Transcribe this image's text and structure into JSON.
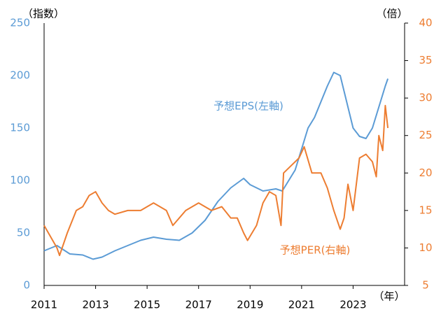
{
  "chart_data": {
    "type": "line",
    "left_unit_label": "（指数）",
    "right_unit_label": "（倍）",
    "x_unit_label": "（年）",
    "annotations": [
      {
        "text": "予想EPS(左軸)",
        "series": 0
      },
      {
        "text": "予想PER(右軸)",
        "series": 1
      }
    ],
    "xlim": [
      2011,
      2025
    ],
    "xticks": [
      2011,
      2013,
      2015,
      2017,
      2019,
      2021,
      2023
    ],
    "ylim": [
      0,
      250
    ],
    "yticks": [
      0,
      50,
      100,
      150,
      200,
      250
    ],
    "y2lim": [
      5,
      40
    ],
    "y2ticks": [
      5,
      10,
      15,
      20,
      25,
      30,
      35,
      40
    ],
    "series": [
      {
        "name": "予想EPS",
        "color": "#5b9bd5",
        "axis": "y",
        "x": [
          2011.0,
          2011.5,
          2012.0,
          2012.5,
          2012.9,
          2013.25,
          2013.75,
          2014.25,
          2014.75,
          2015.25,
          2015.75,
          2016.25,
          2016.75,
          2017.25,
          2017.75,
          2018.25,
          2018.75,
          2019.0,
          2019.5,
          2020.0,
          2020.25,
          2020.5,
          2020.75,
          2021.0,
          2021.25,
          2021.5,
          2021.75,
          2022.0,
          2022.25,
          2022.5,
          2022.75,
          2023.0,
          2023.25,
          2023.5,
          2023.75,
          2024.0,
          2024.25,
          2024.35
        ],
        "values": [
          33,
          38,
          30,
          29,
          25,
          27,
          33,
          38,
          43,
          46,
          44,
          43,
          50,
          62,
          80,
          93,
          102,
          96,
          90,
          92,
          90,
          100,
          110,
          130,
          150,
          160,
          175,
          190,
          203,
          200,
          175,
          150,
          142,
          140,
          150,
          170,
          190,
          197
        ]
      },
      {
        "name": "予想PER",
        "color": "#ed7d31",
        "axis": "y2",
        "x": [
          2011.0,
          2011.5,
          2011.6,
          2011.9,
          2012.25,
          2012.5,
          2012.75,
          2013.0,
          2013.25,
          2013.5,
          2013.75,
          2014.25,
          2014.75,
          2015.25,
          2015.75,
          2016.0,
          2016.5,
          2017.0,
          2017.5,
          2017.9,
          2018.25,
          2018.5,
          2018.75,
          2018.9,
          2019.25,
          2019.5,
          2019.75,
          2020.0,
          2020.2,
          2020.3,
          2020.6,
          2020.9,
          2021.1,
          2021.4,
          2021.75,
          2022.0,
          2022.25,
          2022.5,
          2022.65,
          2022.8,
          2023.0,
          2023.25,
          2023.5,
          2023.75,
          2023.9,
          2024.0,
          2024.15,
          2024.25,
          2024.35
        ],
        "values": [
          13,
          10,
          9,
          12,
          15,
          15.5,
          17,
          17.5,
          16,
          15,
          14.5,
          15,
          15,
          16,
          15,
          13,
          15,
          16,
          15,
          15.5,
          14,
          14,
          12,
          11,
          13,
          16,
          17.5,
          17,
          13,
          20,
          21,
          22,
          23.5,
          20,
          20,
          18,
          15,
          12.5,
          14,
          18.5,
          15,
          22,
          22.5,
          21.5,
          19.5,
          25,
          23,
          29,
          26
        ]
      }
    ]
  }
}
